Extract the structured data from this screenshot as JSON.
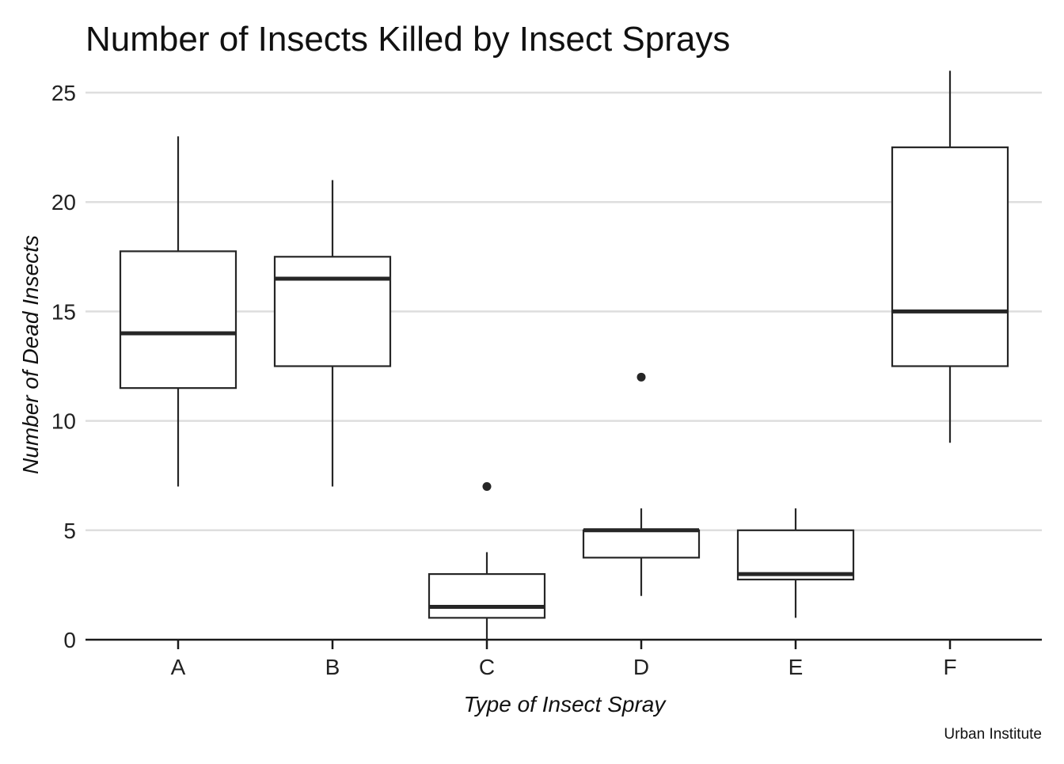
{
  "chart_data": {
    "type": "boxplot",
    "title": "Number of Insects Killed by Insect Sprays",
    "xlabel": "Type of Insect Spray",
    "ylabel": "Number of Dead Insects",
    "caption": "Urban Institute",
    "categories": [
      "A",
      "B",
      "C",
      "D",
      "E",
      "F"
    ],
    "ylim": [
      0,
      26
    ],
    "yticks": [
      0,
      5,
      10,
      15,
      20,
      25
    ],
    "ytick_labels": [
      "0",
      "5",
      "10",
      "15",
      "20",
      "25"
    ],
    "grid": "horizontal major gridlines on",
    "boxes": [
      {
        "category": "A",
        "min": 7,
        "q1": 11.5,
        "median": 14,
        "q3": 17.75,
        "max": 23,
        "outliers": []
      },
      {
        "category": "B",
        "min": 7,
        "q1": 12.5,
        "median": 16.5,
        "q3": 17.5,
        "max": 21,
        "outliers": []
      },
      {
        "category": "C",
        "min": 0,
        "q1": 1,
        "median": 1.5,
        "q3": 3,
        "max": 4,
        "outliers": [
          7
        ]
      },
      {
        "category": "D",
        "min": 2,
        "q1": 3.75,
        "median": 5,
        "q3": 5,
        "max": 6,
        "outliers": [
          12
        ]
      },
      {
        "category": "E",
        "min": 1,
        "q1": 2.75,
        "median": 3,
        "q3": 5,
        "max": 6,
        "outliers": []
      },
      {
        "category": "F",
        "min": 9,
        "q1": 12.5,
        "median": 15,
        "q3": 22.5,
        "max": 26,
        "outliers": []
      }
    ],
    "colors": {
      "box_stroke": "#262626",
      "box_fill": "#ffffff",
      "grid": "#dedede",
      "axis": "#1a1a1a"
    }
  }
}
